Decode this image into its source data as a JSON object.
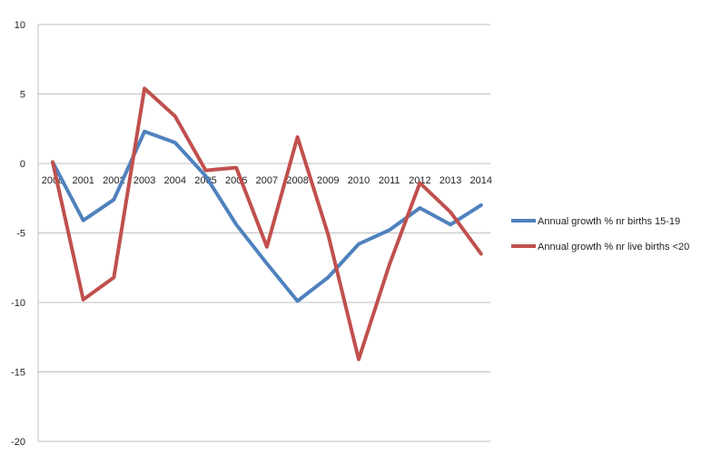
{
  "chart_data": {
    "type": "line",
    "title": "",
    "xlabel": "",
    "ylabel": "",
    "categories": [
      "2000",
      "2001",
      "2002",
      "2003",
      "2004",
      "2005",
      "2006",
      "2007",
      "2008",
      "2009",
      "2010",
      "2011",
      "2012",
      "2013",
      "2014"
    ],
    "ylim": [
      -20,
      10
    ],
    "yticks": [
      10,
      5,
      0,
      -5,
      -10,
      -15,
      -20
    ],
    "grid": "horizontal",
    "legend_position": "right",
    "series": [
      {
        "name": "Annual growth % nr births 15-19",
        "color": "#4f81bd",
        "values": [
          0.1,
          -4.1,
          -2.6,
          2.3,
          1.5,
          -0.9,
          -4.4,
          -7.2,
          -9.9,
          -8.2,
          -5.8,
          -4.8,
          -3.2,
          -4.4,
          -3.0
        ]
      },
      {
        "name": "Annual growth % nr live births <20",
        "color": "#c0504d",
        "values": [
          0.1,
          -9.8,
          -8.2,
          5.4,
          3.4,
          -0.5,
          -0.3,
          -6.0,
          1.9,
          -5.1,
          -14.1,
          -7.3,
          -1.4,
          -3.5,
          -6.5
        ]
      }
    ]
  }
}
